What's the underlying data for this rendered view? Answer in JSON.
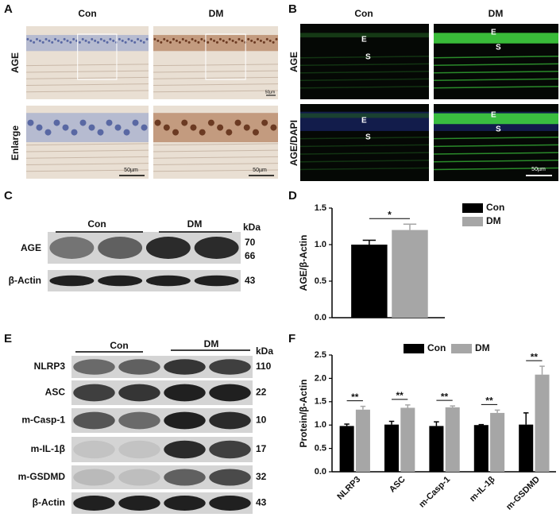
{
  "panels": {
    "A": {
      "label": "A",
      "columns": [
        "Con",
        "DM"
      ],
      "rows": [
        "AGE",
        "Enlarge"
      ],
      "scale_bars": [
        "50µm",
        "50µm",
        "50µm"
      ]
    },
    "B": {
      "label": "B",
      "columns": [
        "Con",
        "DM"
      ],
      "rows": [
        "AGE",
        "AGE/DAPI"
      ],
      "regions": [
        [
          "E",
          "S"
        ],
        [
          "E",
          "S"
        ],
        [
          "E",
          "S"
        ],
        [
          "E",
          "S"
        ]
      ],
      "scale_bar": "50µm"
    },
    "C": {
      "label": "C",
      "groups": [
        "Con",
        "DM"
      ],
      "unit": "kDa",
      "rows": [
        {
          "name": "AGE",
          "kda": [
            70,
            66
          ]
        },
        {
          "name": "β-Actin",
          "kda": [
            43
          ]
        }
      ]
    },
    "D": {
      "label": "D"
    },
    "E": {
      "label": "E",
      "groups": [
        "Con",
        "DM"
      ],
      "unit": "kDa",
      "rows": [
        {
          "name": "NLRP3",
          "kda": 110
        },
        {
          "name": "ASC",
          "kda": 22
        },
        {
          "name": "m-Casp-1",
          "kda": 10
        },
        {
          "name": "m-IL-1β",
          "kda": 17
        },
        {
          "name": "m-GSDMD",
          "kda": 32
        },
        {
          "name": "β-Actin",
          "kda": 43
        }
      ]
    },
    "F": {
      "label": "F"
    }
  },
  "chart_data": [
    {
      "type": "bar",
      "y_label": "AGE/β-Actin",
      "categories": [
        null
      ],
      "series": [
        {
          "name": "Con",
          "color": "#000000",
          "values": [
            1.0
          ],
          "errors": [
            0.06
          ]
        },
        {
          "name": "DM",
          "color": "#a6a6a6",
          "values": [
            1.2
          ],
          "errors": [
            0.08
          ]
        }
      ],
      "significance": [
        "*"
      ],
      "legend": "right",
      "ylim": [
        0,
        1.5
      ],
      "yticks": [
        {
          "value": 0,
          "label": "0.0"
        },
        {
          "value": 0.5,
          "label": "0.5"
        },
        {
          "value": 1,
          "label": "1.0"
        },
        {
          "value": 1.5,
          "label": "1.5"
        }
      ]
    },
    {
      "type": "bar",
      "y_label": "Protein/β-Actin",
      "categories": [
        "NLRP3",
        "ASC",
        "m-Casp-1",
        "m-IL-1β",
        "m-GSDMD"
      ],
      "series": [
        {
          "name": "Con",
          "color": "#000000",
          "values": [
            0.98,
            1.01,
            0.98,
            1.0,
            1.01
          ],
          "errors": [
            0.04,
            0.07,
            0.09,
            0.01,
            0.25
          ]
        },
        {
          "name": "DM",
          "color": "#a6a6a6",
          "values": [
            1.33,
            1.37,
            1.38,
            1.26,
            2.08
          ],
          "errors": [
            0.07,
            0.06,
            0.03,
            0.06,
            0.18
          ]
        }
      ],
      "significance": [
        "**",
        "**",
        "**",
        "**",
        "**"
      ],
      "legend": "top",
      "ylim": [
        0,
        2.5
      ],
      "yticks": [
        {
          "value": 0,
          "label": "0.0"
        },
        {
          "value": 0.5,
          "label": "0.5"
        },
        {
          "value": 1,
          "label": "1.0"
        },
        {
          "value": 1.5,
          "label": "1.5"
        },
        {
          "value": 2,
          "label": "2.0"
        },
        {
          "value": 2.5,
          "label": "2.5"
        }
      ]
    }
  ]
}
